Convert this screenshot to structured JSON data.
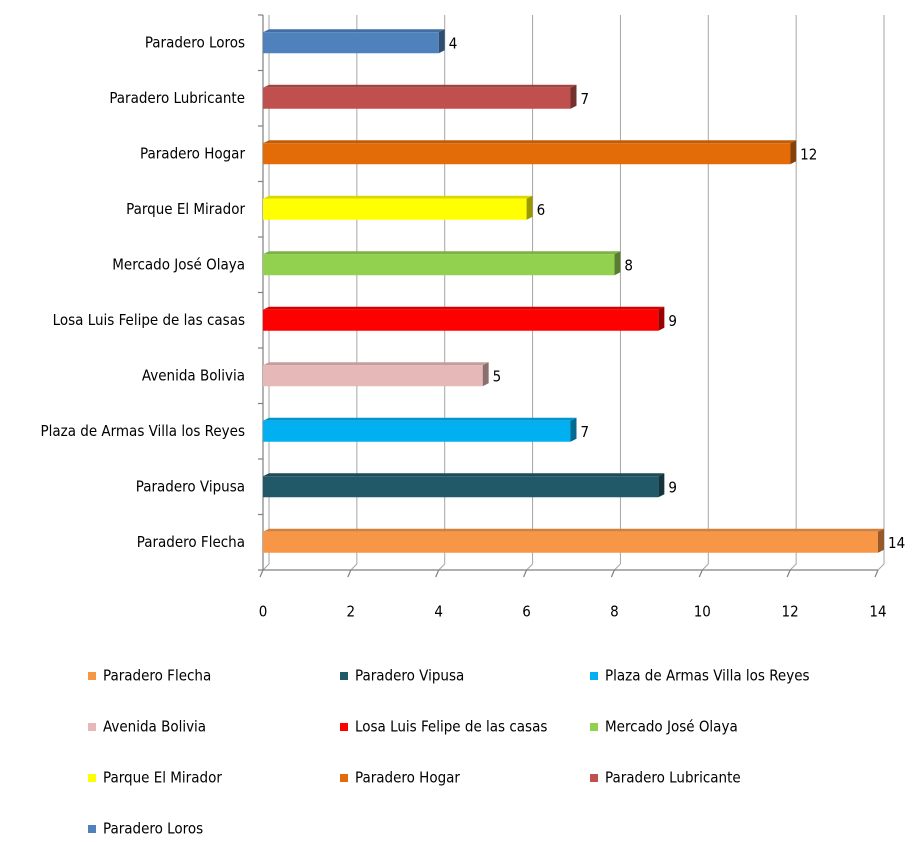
{
  "chart_data": {
    "type": "bar",
    "horizontal": true,
    "categories": [
      "Paradero Flecha",
      "Paradero Vipusa",
      "Plaza de Armas Villa los Reyes",
      "Avenida Bolivia",
      "Losa Luis Felipe de las casas",
      "Mercado José Olaya",
      "Parque El Mirador",
      "Paradero Hogar",
      "Paradero Lubricante",
      "Paradero Loros"
    ],
    "values": [
      14,
      9,
      7,
      5,
      9,
      8,
      6,
      12,
      7,
      4
    ],
    "colors": [
      "#f79646",
      "#215968",
      "#00b0f0",
      "#e6b9b8",
      "#ff0000",
      "#92d050",
      "#ffff00",
      "#e36c09",
      "#c0504d",
      "#4f81bd"
    ],
    "xlim": [
      0,
      14
    ],
    "xticks": [
      0,
      2,
      4,
      6,
      8,
      10,
      12,
      14
    ],
    "grid": true,
    "legend": "bottom"
  }
}
